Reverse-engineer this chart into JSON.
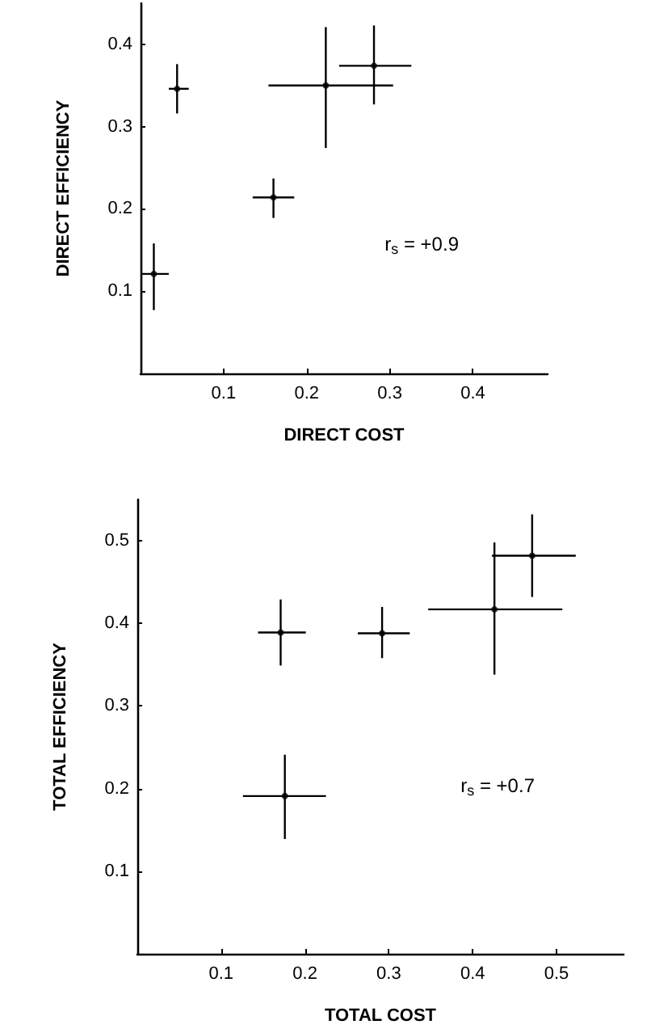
{
  "chart_data": [
    {
      "type": "scatter",
      "xlabel": "DIRECT COST",
      "ylabel": "DIRECT EFFICIENCY",
      "grid": false,
      "annotations": [
        "r$_{s}$ = +0.9"
      ],
      "xlim": [
        0,
        0.49
      ],
      "ylim": [
        0,
        0.45
      ],
      "xticks": [
        0.1,
        0.2,
        0.3,
        0.4
      ],
      "yticks": [
        0.1,
        0.2,
        0.3,
        0.4
      ],
      "series": [
        {
          "color": "#000000",
          "x": [
            0.016,
            0.044,
            0.16,
            0.223,
            0.281
          ],
          "values": [
            0.121,
            0.346,
            0.214,
            0.35,
            0.374
          ],
          "errors": [
            [
              0.077,
              0.158
            ],
            [
              0.316,
              0.376
            ],
            [
              0.189,
              0.237
            ],
            [
              0.274,
              0.421
            ],
            [
              0.327,
              0.423
            ]
          ],
          "xerrors": [
            [
              0.002,
              0.034
            ],
            [
              0.034,
              0.058
            ],
            [
              0.135,
              0.185
            ],
            [
              0.154,
              0.304
            ],
            [
              0.239,
              0.326
            ]
          ]
        }
      ]
    },
    {
      "type": "scatter",
      "xlabel": "TOTAL COST",
      "ylabel": "TOTAL EFFICIENCY",
      "grid": false,
      "annotations": [
        "r$_{s}$ = +0.7"
      ],
      "xlim": [
        0,
        0.58
      ],
      "ylim": [
        0,
        0.55
      ],
      "xticks": [
        0.1,
        0.2,
        0.3,
        0.4,
        0.5
      ],
      "yticks": [
        0.1,
        0.2,
        0.3,
        0.4,
        0.5
      ],
      "series": [
        {
          "color": "#000000",
          "x": [
            0.171,
            0.176,
            0.292,
            0.426,
            0.471
          ],
          "values": [
            0.389,
            0.191,
            0.388,
            0.417,
            0.482
          ],
          "errors": [
            [
              0.349,
              0.429
            ],
            [
              0.139,
              0.241
            ],
            [
              0.358,
              0.42
            ],
            [
              0.338,
              0.498
            ],
            [
              0.432,
              0.532
            ]
          ],
          "xerrors": [
            [
              0.144,
              0.201
            ],
            [
              0.126,
              0.225
            ],
            [
              0.263,
              0.325
            ],
            [
              0.347,
              0.507
            ],
            [
              0.423,
              0.523
            ]
          ]
        }
      ]
    }
  ]
}
